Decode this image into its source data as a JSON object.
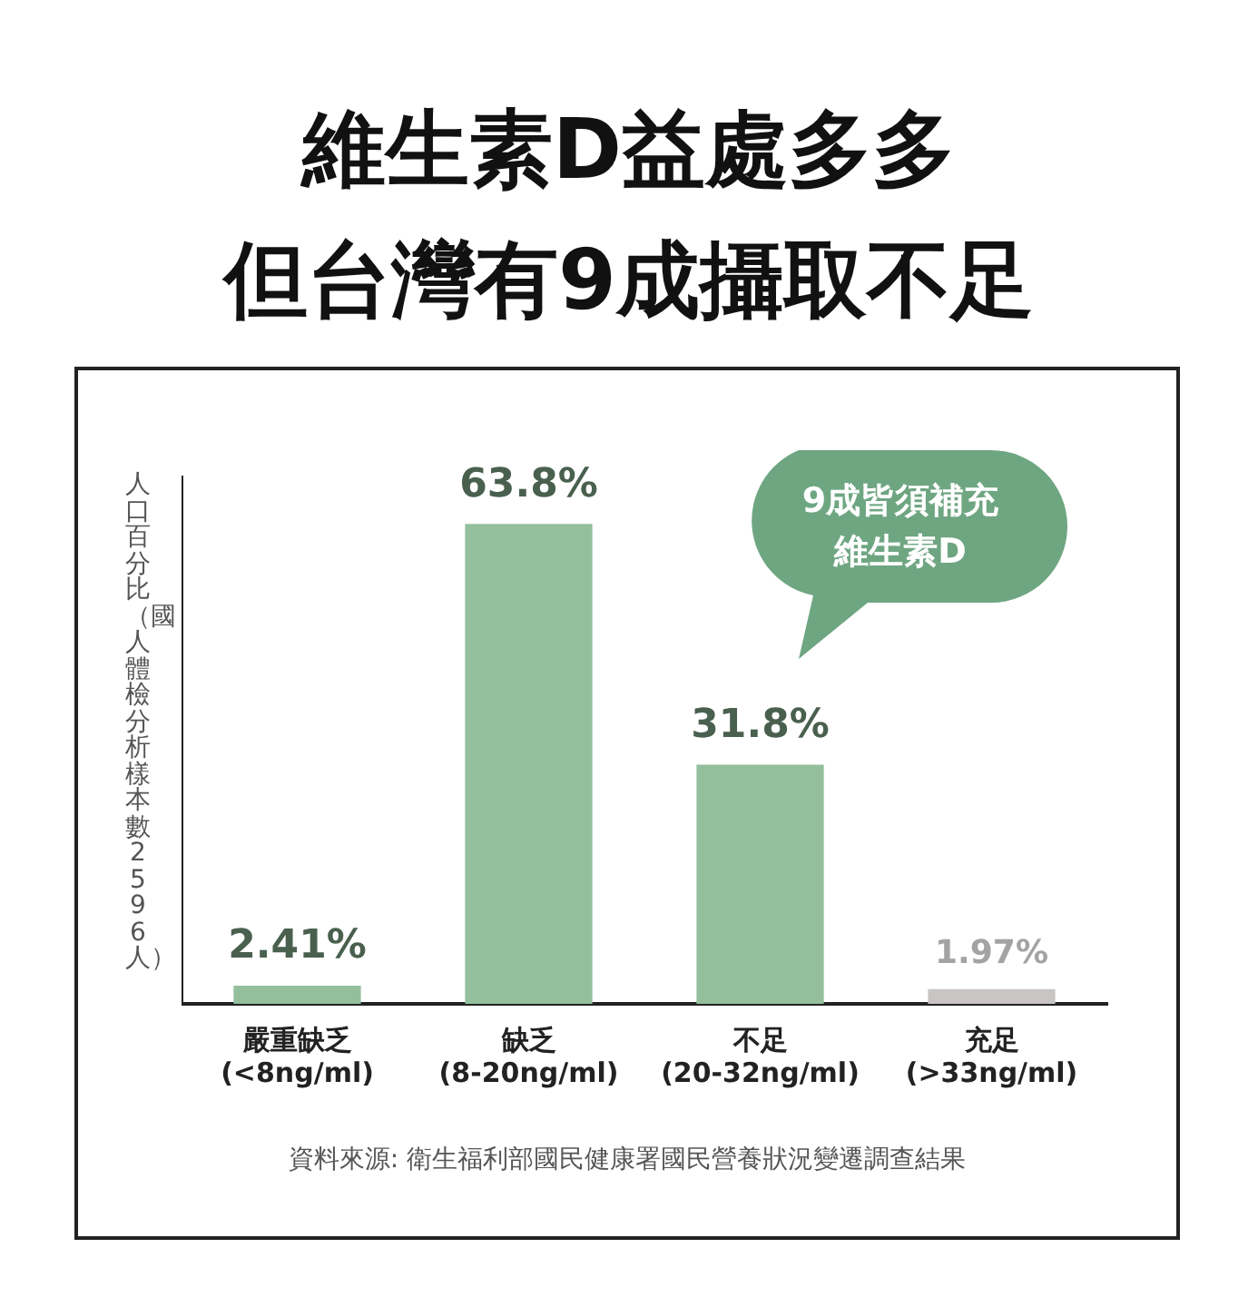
{
  "chart_data": {
    "type": "bar",
    "title": "維生素D益處多多",
    "subtitle": "但台灣有9成攝取不足",
    "ylabel": "人口百分比（國人體檢分析樣本數2596人）",
    "categories": [
      "嚴重缺乏\n(<8ng/ml)",
      "缺乏\n(8-20ng/ml)",
      "不足\n(20-32ng/ml)",
      "充足\n(>33ng/ml)"
    ],
    "values": [
      2.41,
      63.8,
      31.8,
      1.97
    ],
    "colors": [
      "#93bf9d",
      "#93bf9d",
      "#93bf9d",
      "#c9c5c5"
    ],
    "value_labels": [
      "2.41%",
      "63.8%",
      "31.8%",
      "1.97%"
    ],
    "annotations": [
      "9成皆須補充維生素D",
      "資料來源: 衛生福利部國民健康署國民營養狀況變遷調查結果"
    ],
    "legend": false,
    "grid": false
  }
}
